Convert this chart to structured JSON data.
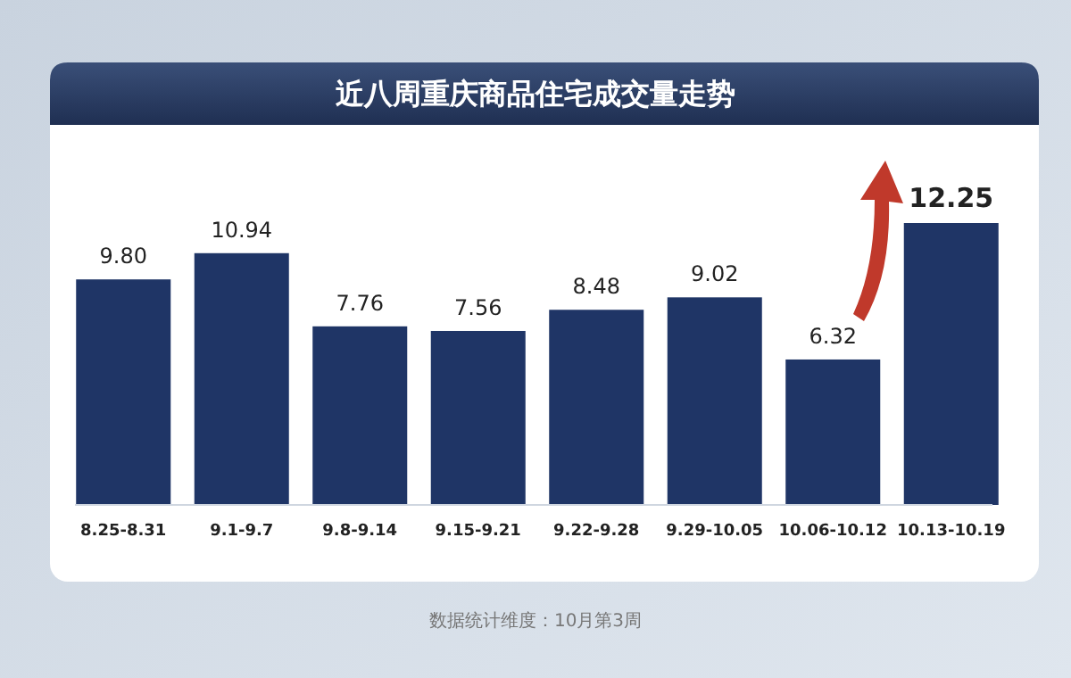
{
  "chart_data": {
    "type": "bar",
    "title": "近八周重庆商品住宅成交量走势",
    "categories": [
      "8.25-8.31",
      "9.1-9.7",
      "9.8-9.14",
      "9.15-9.21",
      "9.22-9.28",
      "9.29-10.05",
      "10.06-10.12",
      "10.13-10.19"
    ],
    "values": [
      9.8,
      10.94,
      7.76,
      7.56,
      8.48,
      9.02,
      6.32,
      12.25
    ],
    "value_labels": [
      "9.80",
      "10.94",
      "7.76",
      "7.56",
      "8.48",
      "9.02",
      "6.32",
      "12.25"
    ],
    "color": "#1f3566",
    "annotations": [
      "数据统计维度：10月第3周"
    ]
  }
}
